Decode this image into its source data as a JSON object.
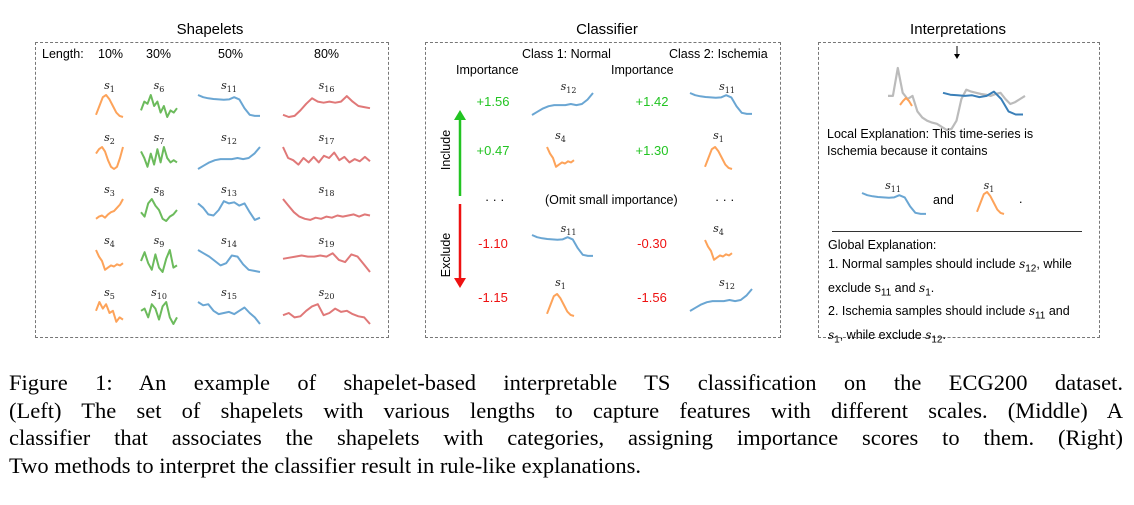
{
  "colors": {
    "len10": "#fda35a",
    "len30": "#6cbb5c",
    "len50": "#6aa6d3",
    "len80": "#e07878",
    "positive": "#22c422",
    "negative": "#ee1111",
    "series": "#bbbbbb",
    "highlight": "#3a7fb8"
  },
  "shapes": {
    "s1": [
      0.1,
      0.5,
      0.9,
      1,
      0.8,
      0.5,
      0.2,
      0.05,
      0
    ],
    "s2": [
      0.7,
      0.9,
      1,
      0.8,
      0.4,
      0.1,
      0,
      0.1,
      0.5,
      1
    ],
    "s3": [
      0.1,
      0.2,
      0.25,
      0.15,
      0.3,
      0.4,
      0.45,
      0.6,
      0.75,
      1
    ],
    "s4": [
      1,
      0.7,
      0.5,
      0.1,
      0.2,
      0.3,
      0.25,
      0.35,
      0.3,
      0.4
    ],
    "s5": [
      0.6,
      1,
      0.7,
      0.9,
      0.5,
      0.6,
      0.1,
      0.3,
      0.2
    ],
    "s6": [
      0.3,
      0.7,
      0.6,
      1,
      0.5,
      0.7,
      0.2,
      0.5,
      0,
      0.3,
      0.2,
      0.4
    ],
    "s7": [
      0.8,
      0.5,
      0.1,
      0.7,
      0.2,
      0.9,
      0.3,
      1,
      0.5,
      0.3,
      0.4,
      0.3
    ],
    "s8": [
      0.4,
      0.2,
      0.8,
      1,
      0.7,
      0.5,
      0.1,
      0,
      0.2,
      0.3,
      0.5
    ],
    "s9": [
      0.5,
      0.9,
      0.4,
      0.1,
      0.8,
      0.2,
      0,
      0.6,
      1,
      0.2,
      0.3
    ],
    "s10": [
      0.6,
      0.7,
      0.3,
      0.9,
      0.7,
      0.2,
      0.8,
      1,
      0.3,
      0,
      0.3
    ],
    "s11": [
      1,
      0.9,
      0.85,
      0.82,
      0.8,
      0.78,
      0.8,
      0.9,
      0.8,
      0.4,
      0.1,
      0.05,
      0.05
    ],
    "s12": [
      0,
      0.15,
      0.3,
      0.4,
      0.45,
      0.45,
      0.45,
      0.5,
      0.45,
      0.5,
      0.7,
      1
    ],
    "s13": [
      0.8,
      0.6,
      0.3,
      0.25,
      0.5,
      0.9,
      0.8,
      0.85,
      0.7,
      0.8,
      0.4,
      0.05,
      0.15
    ],
    "s14": [
      1,
      0.85,
      0.7,
      0.5,
      0.3,
      0.4,
      0.75,
      0.7,
      0.35,
      0.1,
      0.05,
      0
    ],
    "s15": [
      1,
      0.85,
      0.9,
      0.6,
      0.45,
      0.5,
      0.55,
      0.45,
      0.6,
      0.75,
      0.5,
      0.3,
      0
    ],
    "s16": [
      0.1,
      0,
      0.05,
      0.3,
      0.6,
      0.85,
      0.7,
      0.65,
      0.7,
      0.65,
      0.7,
      0.95,
      0.7,
      0.5,
      0.45,
      0.4
    ],
    "s17": [
      1,
      0.5,
      0.4,
      0.2,
      0.5,
      0.3,
      0.55,
      0.3,
      0.6,
      0.5,
      0.75,
      0.4,
      0.55,
      0.3,
      0.45,
      0.35,
      0.55,
      0.35
    ],
    "s18": [
      1,
      0.7,
      0.4,
      0.2,
      0.1,
      0.05,
      0.15,
      0.1,
      0.2,
      0.15,
      0.25,
      0.2,
      0.25,
      0.3,
      0.2,
      0.3,
      0.25
    ],
    "s19": [
      0.6,
      0.65,
      0.7,
      0.75,
      0.7,
      0.7,
      0.75,
      0.7,
      0.85,
      0.55,
      0.45,
      0.8,
      0.7,
      0.35,
      0
    ],
    "s20": [
      0.4,
      0.5,
      0.3,
      0.35,
      0.6,
      0.8,
      0.9,
      0.4,
      0.5,
      0.7,
      0.55,
      0.6,
      0.45,
      0.35,
      0.3,
      0
    ],
    "series": [
      0.55,
      0.55,
      1,
      0.6,
      0.5,
      0.55,
      0.3,
      0.2,
      0.15,
      0.12,
      0.1,
      0.05,
      0,
      0.02,
      0.15,
      0.5,
      0.65,
      0.62,
      0.6,
      0.58,
      0.57,
      0.55,
      0.58,
      0.6,
      0.5,
      0.42,
      0.45,
      0.5,
      0.55
    ]
  },
  "shapelets": {
    "title": "Shapelets",
    "length_label": "Length:",
    "columns": [
      {
        "label": "10%",
        "color": "len10",
        "ids": [
          "1",
          "2",
          "3",
          "4",
          "5"
        ]
      },
      {
        "label": "30%",
        "color": "len30",
        "ids": [
          "6",
          "7",
          "8",
          "9",
          "10"
        ]
      },
      {
        "label": "50%",
        "color": "len50",
        "ids": [
          "11",
          "12",
          "13",
          "14",
          "15"
        ]
      },
      {
        "label": "80%",
        "color": "len80",
        "ids": [
          "16",
          "17",
          "18",
          "19",
          "20"
        ]
      }
    ]
  },
  "classifier": {
    "title": "Classifier",
    "class1": "Class 1: Normal",
    "class2": "Class 2: Ischemia",
    "importance": "Importance",
    "include": "Include",
    "exclude": "Exclude",
    "ellipsis": "· · ·",
    "omit": "(Omit small importance)",
    "class1_rows": [
      {
        "value": "+1.56",
        "id": "12"
      },
      {
        "value": "+0.47",
        "id": "4"
      },
      {
        "value": "-1.10",
        "id": "11"
      },
      {
        "value": "-1.15",
        "id": "1"
      }
    ],
    "class2_rows": [
      {
        "value": "+1.42",
        "id": "11"
      },
      {
        "value": "+1.30",
        "id": "1"
      },
      {
        "value": "-0.30",
        "id": "4"
      },
      {
        "value": "-1.56",
        "id": "12"
      }
    ]
  },
  "interpretations": {
    "title": "Interpretations",
    "local_line1": "Local Explanation: This time-series is",
    "local_line2": "Ischemia because it contains",
    "s11": "11",
    "s1": "1",
    "and": "and",
    "period": ".",
    "global_title": "Global Explanation:",
    "g1a": "1. Normal samples should include ",
    "g1b": ", while",
    "g1c": "exclude ",
    "g1d": " and ",
    "g1e": ".",
    "g2a": "2. Ischemia samples should include ",
    "g2b": " and",
    "g2c": ", while exclude ",
    "g2d": ".",
    "s": "s",
    "n12": "12",
    "n11": "11",
    "n1": "1"
  },
  "caption": {
    "lines": [
      "Figure 1: An example of shapelet-based interpretable TS classification on the ECG200 dataset.",
      "(Left) The set of shapelets with various lengths to capture features with different scales. (Middle) A",
      "classifier that associates the shapelets with categories, assigning importance scores to them. (Right)",
      "Two methods to interpret the classifier result in rule-like explanations."
    ]
  }
}
